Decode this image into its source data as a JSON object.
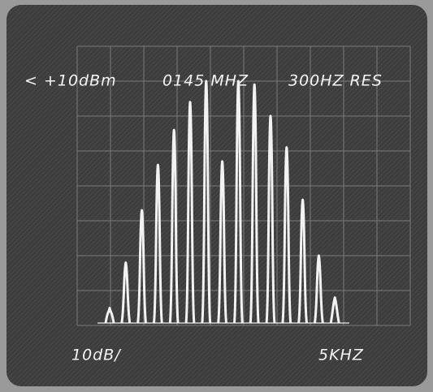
{
  "screen": {
    "top_left": "< +10dBm",
    "frequency": "0145 MHZ",
    "resolution": "300HZ RES",
    "scale": "10dB/",
    "span": "5KHZ"
  },
  "chart_data": {
    "type": "spectrum",
    "values": [
      -65,
      -52,
      -37,
      -24,
      -14,
      -6,
      0,
      -23,
      0,
      -1,
      -10,
      -19,
      -34,
      -50,
      -62
    ],
    "ylim": [
      -70,
      10
    ],
    "color": "#f2f2f2"
  }
}
